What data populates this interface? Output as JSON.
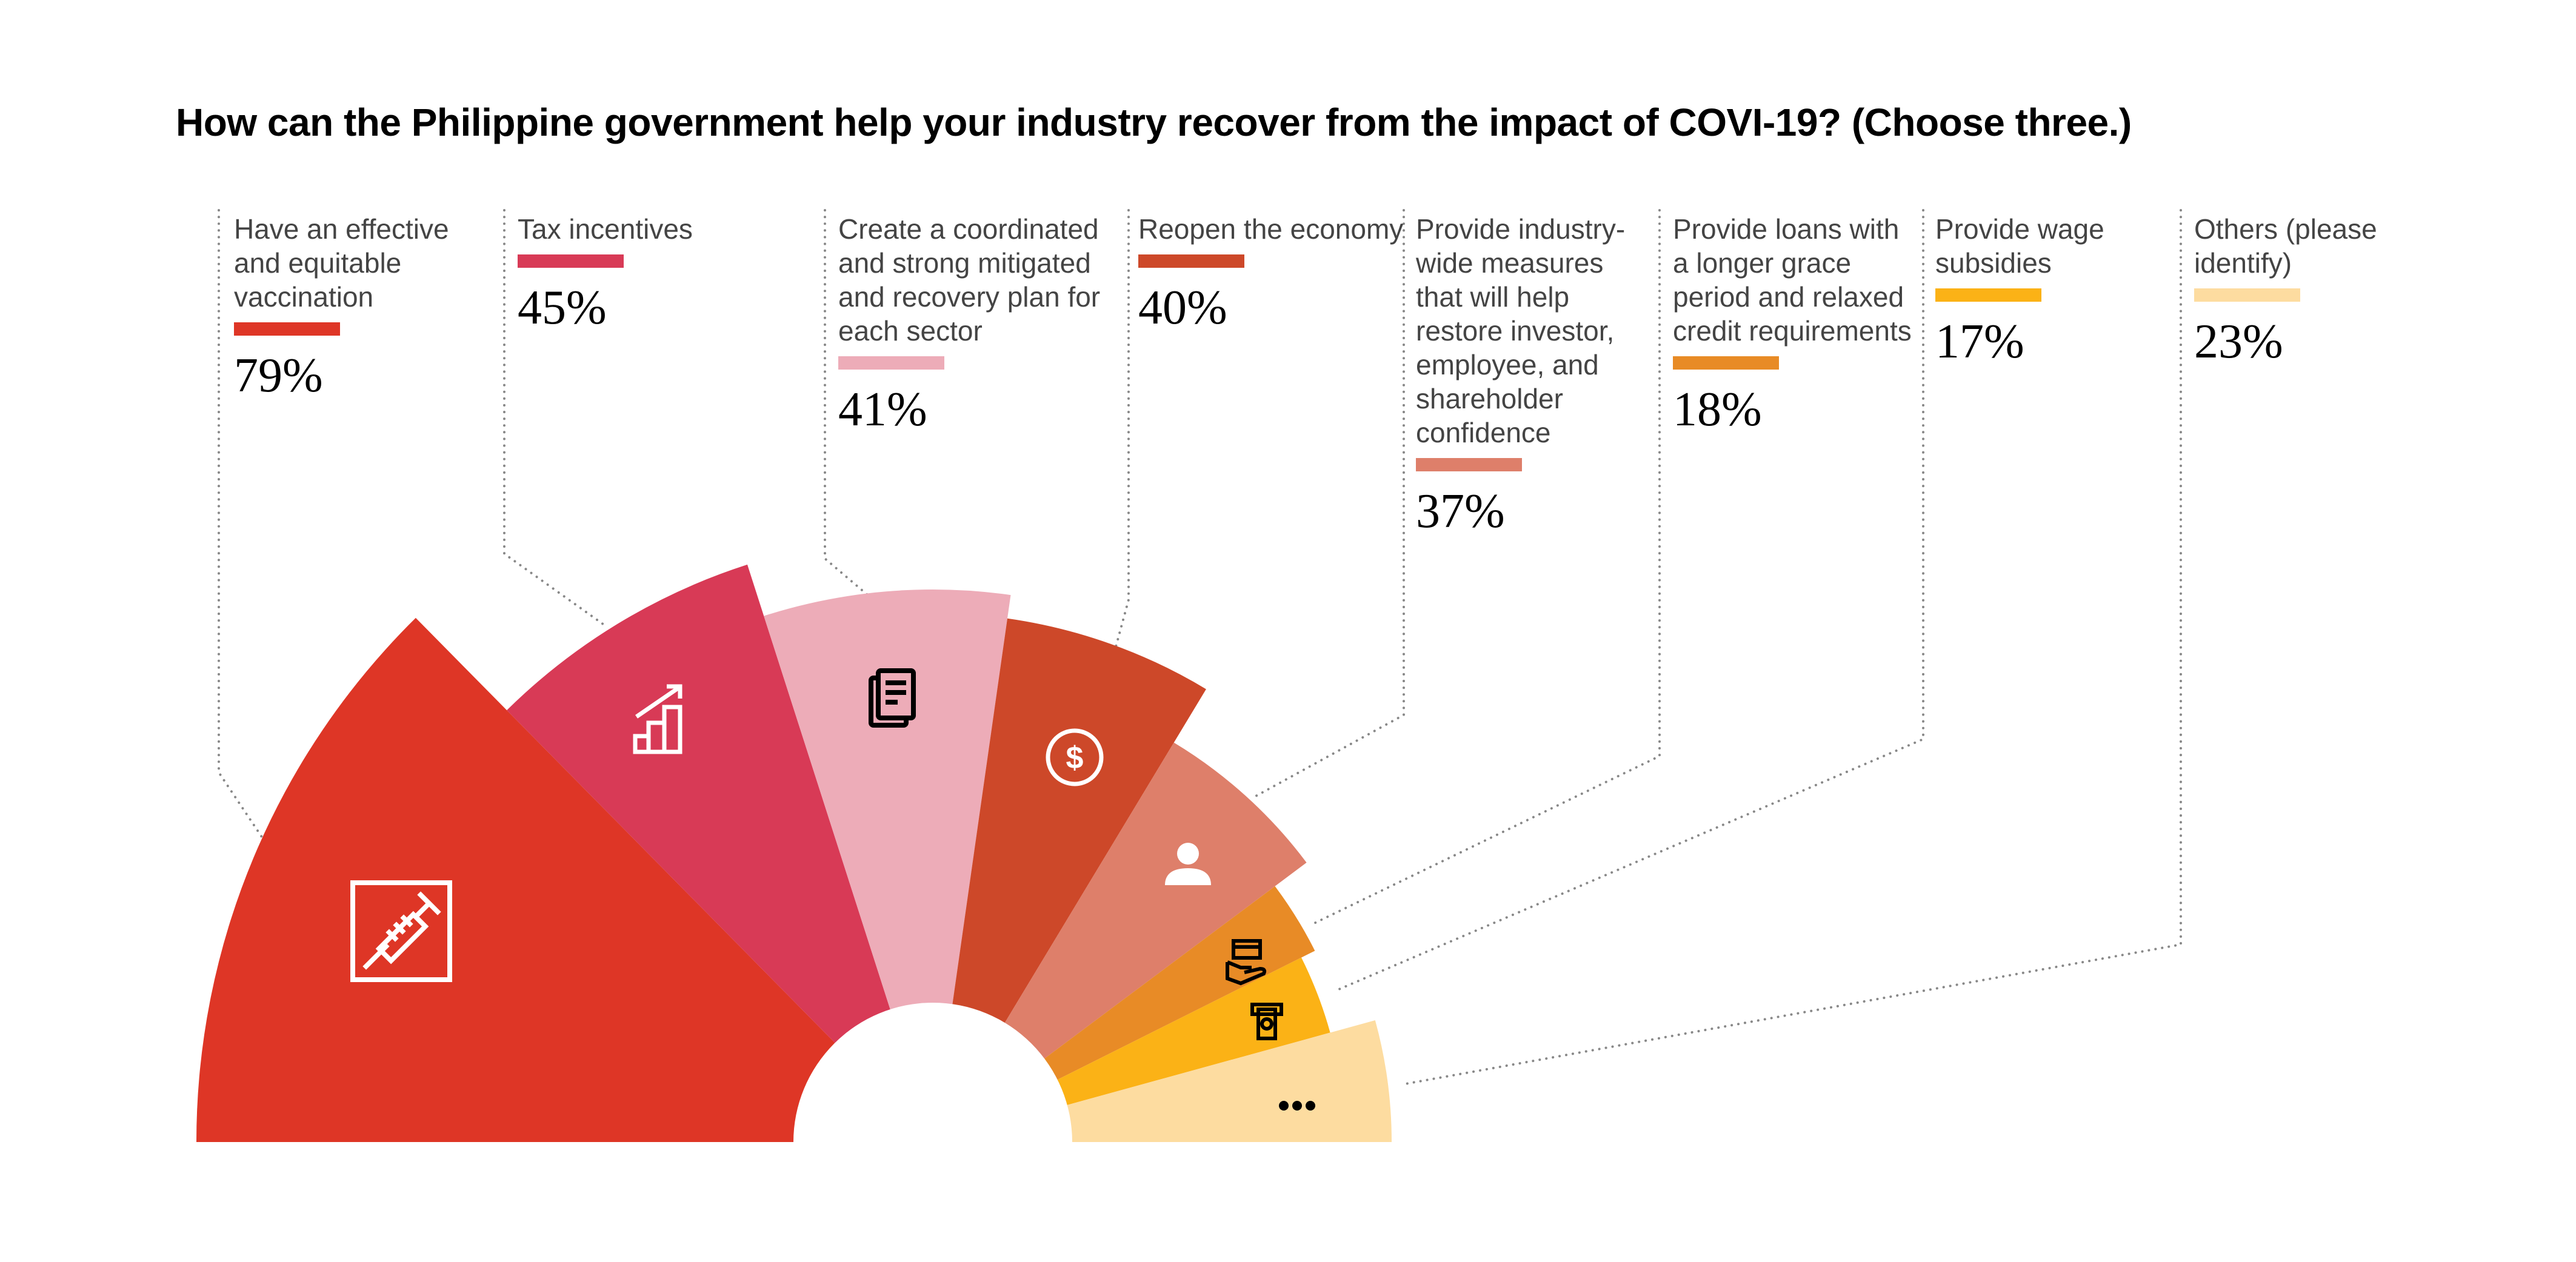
{
  "chart_data": {
    "type": "pie",
    "variant": "coxcomb-semicircle",
    "title": "How can the Philippine government help your industry recover from the impact of COVI-19? (Choose three.)",
    "categories": [
      "Have an effective and equitable vaccination",
      "Tax incentives",
      "Create a coordinated and strong mitigated and recovery plan for each sector",
      "Reopen the economy",
      "Provide industry-wide measures that will help restore investor, employee, and shareholder confidence",
      "Provide loans with a longer grace period and relaxed credit requirements",
      "Provide wage subsidies",
      "Others (please identify)"
    ],
    "values": [
      79,
      45,
      41,
      40,
      37,
      18,
      17,
      23
    ],
    "value_labels": [
      "79%",
      "45%",
      "41%",
      "40%",
      "37%",
      "18%",
      "17%",
      "23%"
    ],
    "colors": [
      "#DE3626",
      "#D83A56",
      "#EDACB8",
      "#CD4829",
      "#DE7F6A",
      "#E88B26",
      "#FBB216",
      "#FDDCA0"
    ],
    "icons": [
      "syringe-icon",
      "growth-chart-icon",
      "documents-icon",
      "dollar-coin-icon",
      "person-icon",
      "card-in-hand-icon",
      "cash-atm-icon",
      "ellipsis-icon"
    ],
    "icon_colors": [
      "#FFFFFF",
      "#FFFFFF",
      "#000000",
      "#FFFFFF",
      "#FFFFFF",
      "#000000",
      "#000000",
      "#000000"
    ],
    "leader_color": "#888888"
  }
}
